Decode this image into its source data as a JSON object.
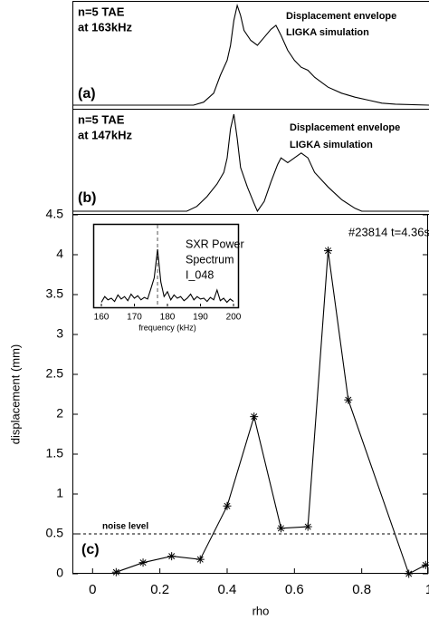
{
  "chart_data": [
    {
      "type": "line",
      "label": [
        "n=5 TAE",
        "at 163kHz"
      ],
      "note": [
        "Displacement envelope",
        "LIGKA simulation"
      ],
      "panel_label": "(a)",
      "xlim": [
        -0.06,
        1.0
      ],
      "ylim": [
        0,
        1
      ],
      "x": [
        -0.06,
        0.3,
        0.33,
        0.36,
        0.38,
        0.4,
        0.41,
        0.42,
        0.43,
        0.44,
        0.45,
        0.47,
        0.49,
        0.51,
        0.53,
        0.545,
        0.56,
        0.58,
        0.6,
        0.62,
        0.64,
        0.66,
        0.7,
        0.74,
        0.78,
        0.82,
        0.86,
        0.9,
        1.0
      ],
      "values": [
        0,
        0,
        0.03,
        0.12,
        0.3,
        0.45,
        0.6,
        0.85,
        1.0,
        0.9,
        0.75,
        0.65,
        0.6,
        0.68,
        0.76,
        0.8,
        0.7,
        0.55,
        0.45,
        0.38,
        0.35,
        0.28,
        0.18,
        0.12,
        0.08,
        0.05,
        0.02,
        0.01,
        0
      ]
    },
    {
      "type": "line",
      "label": [
        "n=5 TAE",
        "at 147kHz"
      ],
      "note": [
        "Displacement envelope",
        "LIGKA simulation"
      ],
      "panel_label": "(b)",
      "xlim": [
        -0.06,
        1.0
      ],
      "ylim": [
        0,
        1
      ],
      "x": [
        -0.06,
        0.28,
        0.31,
        0.34,
        0.37,
        0.39,
        0.4,
        0.41,
        0.42,
        0.43,
        0.44,
        0.46,
        0.48,
        0.49,
        0.51,
        0.53,
        0.55,
        0.56,
        0.58,
        0.6,
        0.62,
        0.64,
        0.66,
        0.7,
        0.74,
        0.78,
        0.8,
        1.0
      ],
      "values": [
        0,
        0,
        0.05,
        0.15,
        0.28,
        0.4,
        0.55,
        0.85,
        1.0,
        0.75,
        0.45,
        0.25,
        0.08,
        0,
        0.1,
        0.3,
        0.48,
        0.55,
        0.5,
        0.55,
        0.6,
        0.55,
        0.4,
        0.25,
        0.12,
        0.03,
        0,
        0
      ]
    },
    {
      "type": "line",
      "annotation": "#23814 t=4.36s",
      "noise_label": "noise level",
      "noise_level": 0.5,
      "panel_label": "(c)",
      "x_label": "rho",
      "y_label": "displacement (mm)",
      "xlim": [
        -0.06,
        1.0
      ],
      "ylim": [
        0,
        4.5
      ],
      "xticks": [
        0,
        0.2,
        0.4,
        0.6,
        0.8,
        1
      ],
      "yticks": [
        0,
        0.5,
        1,
        1.5,
        2,
        2.5,
        3,
        3.5,
        4,
        4.5
      ],
      "x": [
        0.07,
        0.15,
        0.235,
        0.32,
        0.4,
        0.48,
        0.56,
        0.64,
        0.7,
        0.76,
        0.94,
        0.99
      ],
      "values": [
        0.02,
        0.14,
        0.22,
        0.18,
        0.85,
        1.97,
        0.57,
        0.59,
        4.05,
        2.18,
        0.0,
        0.11
      ]
    },
    {
      "type": "line",
      "label": [
        "SXR Power",
        "Spectrum",
        "I_048"
      ],
      "x_label": "frequency (kHz)",
      "marker_x": 177,
      "xlim": [
        160,
        200
      ],
      "ylim": [
        0,
        1
      ],
      "xticks": [
        160,
        170,
        180,
        190,
        200
      ],
      "x": [
        160,
        161,
        162,
        163,
        164,
        165,
        166,
        167,
        168,
        169,
        170,
        171,
        172,
        173,
        174,
        175,
        176,
        177,
        178,
        179,
        180,
        181,
        182,
        183,
        184,
        185,
        186,
        187,
        188,
        189,
        190,
        191,
        192,
        193,
        194,
        195,
        196,
        197,
        198,
        199,
        200
      ],
      "values": [
        0.05,
        0.12,
        0.08,
        0.1,
        0.06,
        0.14,
        0.09,
        0.12,
        0.07,
        0.15,
        0.1,
        0.13,
        0.08,
        0.11,
        0.09,
        0.22,
        0.35,
        0.7,
        0.3,
        0.12,
        0.18,
        0.08,
        0.14,
        0.1,
        0.12,
        0.07,
        0.1,
        0.15,
        0.08,
        0.12,
        0.09,
        0.1,
        0.06,
        0.11,
        0.08,
        0.2,
        0.07,
        0.1,
        0.05,
        0.09,
        0.06
      ]
    }
  ]
}
